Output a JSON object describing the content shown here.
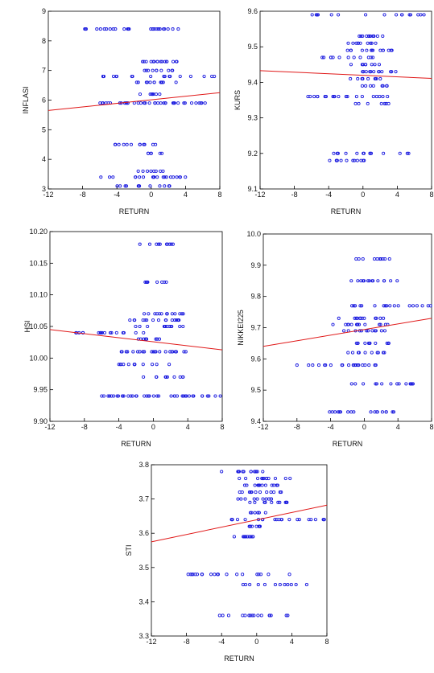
{
  "chart_data": [
    {
      "type": "scatter",
      "title": "",
      "xlabel": "RETURN",
      "ylabel": "INFLASI",
      "xlim": [
        -12,
        8
      ],
      "ylim": [
        3,
        9
      ],
      "xticks": [
        "-12",
        "-8",
        "-4",
        "0",
        "4",
        "8"
      ],
      "yticks": [
        "3",
        "4",
        "5",
        "6",
        "7",
        "8",
        "9"
      ],
      "grid": false,
      "colors": {
        "points": "#1a1adf",
        "fit_line": "#e01818"
      },
      "fit_line": {
        "x": [
          -12,
          8
        ],
        "y": [
          5.65,
          6.25
        ]
      },
      "levels": [
        {
          "y": 8.4,
          "x_min": -8.5,
          "x_max": 4,
          "n": 26
        },
        {
          "y": 7.3,
          "x_min": -1.5,
          "x_max": 3.5,
          "n": 16
        },
        {
          "y": 7.0,
          "x_min": -1,
          "x_max": 2.5,
          "n": 10
        },
        {
          "y": 6.8,
          "x_min": -6,
          "x_max": 7.5,
          "n": 18
        },
        {
          "y": 6.6,
          "x_min": -2,
          "x_max": 3,
          "n": 12
        },
        {
          "y": 6.2,
          "x_min": -1.5,
          "x_max": 1,
          "n": 8
        },
        {
          "y": 5.9,
          "x_min": -6,
          "x_max": 6.5,
          "n": 38
        },
        {
          "y": 4.5,
          "x_min": -4.5,
          "x_max": 0.5,
          "n": 12
        },
        {
          "y": 4.2,
          "x_min": -1,
          "x_max": 1.5,
          "n": 6
        },
        {
          "y": 3.6,
          "x_min": -2,
          "x_max": 2,
          "n": 8
        },
        {
          "y": 3.4,
          "x_min": -6,
          "x_max": 4,
          "n": 20
        },
        {
          "y": 3.1,
          "x_min": -4,
          "x_max": 2.5,
          "n": 12
        }
      ]
    },
    {
      "type": "scatter",
      "title": "",
      "xlabel": "RETURN",
      "ylabel": "KURS",
      "xlim": [
        -12,
        8
      ],
      "ylim": [
        9.1,
        9.6
      ],
      "xticks": [
        "-12",
        "-8",
        "-4",
        "0",
        "4",
        "8"
      ],
      "yticks": [
        "9.1",
        "9.2",
        "9.3",
        "9.4",
        "9.5",
        "9.6"
      ],
      "grid": false,
      "colors": {
        "points": "#1a1adf",
        "fit_line": "#e01818"
      },
      "fit_line": {
        "x": [
          -12,
          8
        ],
        "y": [
          9.433,
          9.411
        ]
      },
      "levels": [
        {
          "y": 9.59,
          "x_min": -6,
          "x_max": 8,
          "n": 16
        },
        {
          "y": 9.53,
          "x_min": -1.5,
          "x_max": 2.5,
          "n": 12
        },
        {
          "y": 9.51,
          "x_min": -3,
          "x_max": 2,
          "n": 10
        },
        {
          "y": 9.49,
          "x_min": -2.5,
          "x_max": 3.5,
          "n": 14
        },
        {
          "y": 9.47,
          "x_min": -5,
          "x_max": 2,
          "n": 12
        },
        {
          "y": 9.45,
          "x_min": -1.5,
          "x_max": 2,
          "n": 8
        },
        {
          "y": 9.43,
          "x_min": -1,
          "x_max": 4,
          "n": 12
        },
        {
          "y": 9.41,
          "x_min": -2,
          "x_max": 3,
          "n": 10
        },
        {
          "y": 9.39,
          "x_min": -0.5,
          "x_max": 3,
          "n": 8
        },
        {
          "y": 9.36,
          "x_min": -9,
          "x_max": 4,
          "n": 20
        },
        {
          "y": 9.34,
          "x_min": -1,
          "x_max": 3,
          "n": 8
        },
        {
          "y": 9.2,
          "x_min": -4,
          "x_max": 6,
          "n": 14
        },
        {
          "y": 9.18,
          "x_min": -5,
          "x_max": 2,
          "n": 12
        }
      ]
    },
    {
      "type": "scatter",
      "title": "",
      "xlabel": "RETURN",
      "ylabel": "HSI",
      "xlim": [
        -12,
        8
      ],
      "ylim": [
        9.9,
        10.2
      ],
      "xticks": [
        "-12",
        "-8",
        "-4",
        "0",
        "4",
        "8"
      ],
      "yticks": [
        "9.90",
        "9.95",
        "10.00",
        "10.05",
        "10.10",
        "10.15",
        "10.20"
      ],
      "grid": false,
      "colors": {
        "points": "#1a1adf",
        "fit_line": "#e01818"
      },
      "fit_line": {
        "x": [
          -12,
          8
        ],
        "y": [
          10.045,
          10.013
        ]
      },
      "levels": [
        {
          "y": 10.18,
          "x_min": -2,
          "x_max": 2.5,
          "n": 10
        },
        {
          "y": 10.12,
          "x_min": -1,
          "x_max": 2.5,
          "n": 8
        },
        {
          "y": 10.07,
          "x_min": -2,
          "x_max": 3.5,
          "n": 14
        },
        {
          "y": 10.06,
          "x_min": -4.5,
          "x_max": 3,
          "n": 16
        },
        {
          "y": 10.05,
          "x_min": -2.5,
          "x_max": 3.5,
          "n": 12
        },
        {
          "y": 10.04,
          "x_min": -9,
          "x_max": 1.5,
          "n": 18
        },
        {
          "y": 10.03,
          "x_min": -2,
          "x_max": 2,
          "n": 8
        },
        {
          "y": 10.01,
          "x_min": -4.5,
          "x_max": 4,
          "n": 22
        },
        {
          "y": 9.99,
          "x_min": -4,
          "x_max": 2,
          "n": 12
        },
        {
          "y": 9.97,
          "x_min": -2,
          "x_max": 3.5,
          "n": 10
        },
        {
          "y": 9.94,
          "x_min": -6,
          "x_max": 8,
          "n": 40
        }
      ]
    },
    {
      "type": "scatter",
      "title": "",
      "xlabel": "RETURN",
      "ylabel": "NIKKEI225",
      "xlim": [
        -12,
        8
      ],
      "ylim": [
        9.4,
        10.0
      ],
      "xticks": [
        "-12",
        "-8",
        "-4",
        "0",
        "4",
        "8"
      ],
      "yticks": [
        "9.4",
        "9.5",
        "9.6",
        "9.7",
        "9.8",
        "9.9",
        "10.0"
      ],
      "grid": false,
      "colors": {
        "points": "#1a1adf",
        "fit_line": "#e01818"
      },
      "fit_line": {
        "x": [
          -12,
          8
        ],
        "y": [
          9.64,
          9.73
        ]
      },
      "levels": [
        {
          "y": 9.92,
          "x_min": -1.5,
          "x_max": 3,
          "n": 10
        },
        {
          "y": 9.85,
          "x_min": -2,
          "x_max": 4,
          "n": 14
        },
        {
          "y": 9.77,
          "x_min": -1.5,
          "x_max": 8,
          "n": 18
        },
        {
          "y": 9.73,
          "x_min": -3.5,
          "x_max": 2.5,
          "n": 12
        },
        {
          "y": 9.71,
          "x_min": -4.5,
          "x_max": 3,
          "n": 14
        },
        {
          "y": 9.69,
          "x_min": -3,
          "x_max": 2.5,
          "n": 12
        },
        {
          "y": 9.65,
          "x_min": -1,
          "x_max": 3,
          "n": 12
        },
        {
          "y": 9.62,
          "x_min": -2,
          "x_max": 3,
          "n": 10
        },
        {
          "y": 9.58,
          "x_min": -9,
          "x_max": 2,
          "n": 22
        },
        {
          "y": 9.52,
          "x_min": -1.5,
          "x_max": 6,
          "n": 14
        },
        {
          "y": 9.43,
          "x_min": -4.5,
          "x_max": 4,
          "n": 18
        }
      ]
    },
    {
      "type": "scatter",
      "title": "",
      "xlabel": "RETURN",
      "ylabel": "STI",
      "xlim": [
        -12,
        8
      ],
      "ylim": [
        3.3,
        3.8
      ],
      "xticks": [
        "-12",
        "-8",
        "-4",
        "0",
        "4",
        "8"
      ],
      "yticks": [
        "3.3",
        "3.4",
        "3.5",
        "3.6",
        "3.7",
        "3.8"
      ],
      "grid": false,
      "colors": {
        "points": "#1a1adf",
        "fit_line": "#e01818"
      },
      "fit_line": {
        "x": [
          -12,
          8
        ],
        "y": [
          3.575,
          3.682
        ]
      },
      "levels": [
        {
          "y": 3.78,
          "x_min": -4.5,
          "x_max": 1.5,
          "n": 14
        },
        {
          "y": 3.76,
          "x_min": -2,
          "x_max": 4,
          "n": 12
        },
        {
          "y": 3.74,
          "x_min": -1.5,
          "x_max": 2.5,
          "n": 12
        },
        {
          "y": 3.72,
          "x_min": -2,
          "x_max": 3.5,
          "n": 12
        },
        {
          "y": 3.7,
          "x_min": -2.5,
          "x_max": 2,
          "n": 10
        },
        {
          "y": 3.69,
          "x_min": -1,
          "x_max": 3.5,
          "n": 10
        },
        {
          "y": 3.66,
          "x_min": -1,
          "x_max": 1.5,
          "n": 6
        },
        {
          "y": 3.64,
          "x_min": -6,
          "x_max": 8,
          "n": 22
        },
        {
          "y": 3.62,
          "x_min": -2,
          "x_max": 1,
          "n": 8
        },
        {
          "y": 3.59,
          "x_min": -3,
          "x_max": 1.5,
          "n": 10
        },
        {
          "y": 3.48,
          "x_min": -9,
          "x_max": 4,
          "n": 20
        },
        {
          "y": 3.45,
          "x_min": -2.5,
          "x_max": 6,
          "n": 12
        },
        {
          "y": 3.36,
          "x_min": -5,
          "x_max": 4,
          "n": 16
        }
      ]
    }
  ]
}
